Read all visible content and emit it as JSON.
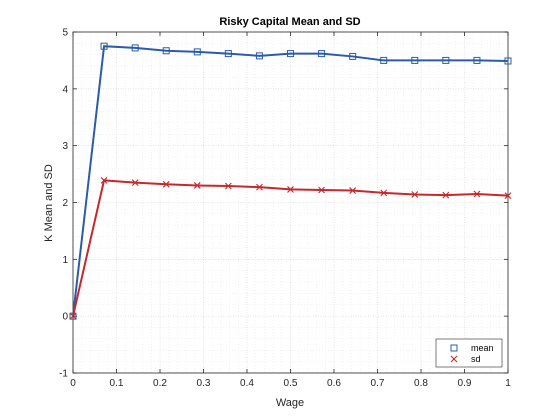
{
  "chart_data": {
    "type": "line",
    "title": "Risky Capital Mean and SD",
    "xlabel": "Wage",
    "ylabel": "K Mean and SD",
    "xlim": [
      0,
      1
    ],
    "ylim": [
      -1,
      5
    ],
    "x_ticks": [
      "0",
      "0.1",
      "0.2",
      "0.3",
      "0.4",
      "0.5",
      "0.6",
      "0.7",
      "0.8",
      "0.9",
      "1"
    ],
    "y_ticks": [
      "-1",
      "0",
      "1",
      "2",
      "3",
      "4",
      "5"
    ],
    "grid": "on (major and minor, dotted)",
    "legend_placement": "bottom-right",
    "x": [
      0,
      0.0714,
      0.1429,
      0.2143,
      0.2857,
      0.3571,
      0.4286,
      0.5,
      0.5714,
      0.6429,
      0.7143,
      0.7857,
      0.8571,
      0.9286,
      1.0
    ],
    "series": [
      {
        "name": "mean",
        "color": "#2a5caa",
        "marker": "square",
        "values": [
          0,
          4.75,
          4.72,
          4.67,
          4.65,
          4.62,
          4.58,
          4.62,
          4.62,
          4.57,
          4.5,
          4.5,
          4.5,
          4.5,
          4.49
        ]
      },
      {
        "name": "sd",
        "color": "#c6282d",
        "marker": "x",
        "values": [
          0,
          2.39,
          2.35,
          2.32,
          2.3,
          2.29,
          2.27,
          2.23,
          2.22,
          2.21,
          2.17,
          2.14,
          2.13,
          2.15,
          2.12
        ]
      }
    ]
  }
}
